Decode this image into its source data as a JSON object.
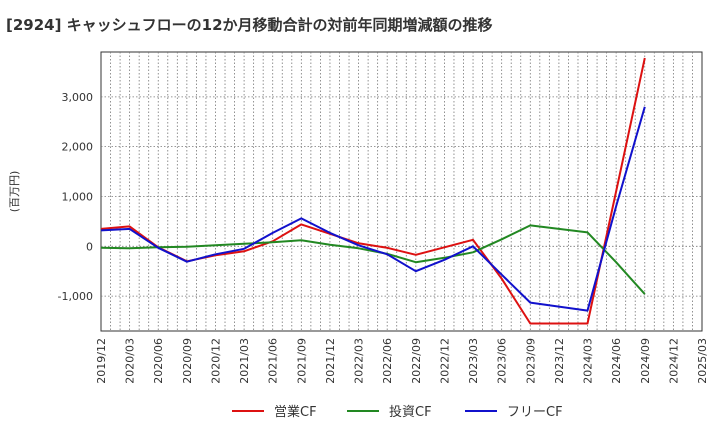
{
  "title": "[2924]  キャッシュフローの12か月移動合計の対前年同期増減額の推移",
  "chart_data": {
    "type": "line",
    "ylabel": "(百万円)",
    "ylim": [
      -1700,
      3900
    ],
    "yticks": [
      -1000,
      0,
      1000,
      2000,
      3000
    ],
    "ytick_labels": [
      "-1,000",
      "0",
      "1,000",
      "2,000",
      "3,000"
    ],
    "x_labels": [
      "2019/12",
      "2020/03",
      "2020/06",
      "2020/09",
      "2020/12",
      "2021/03",
      "2021/06",
      "2021/09",
      "2021/12",
      "2022/03",
      "2022/06",
      "2022/09",
      "2022/12",
      "2023/03",
      "2023/06",
      "2023/09",
      "2023/12",
      "2024/03",
      "2024/06",
      "2024/09",
      "2024/12",
      "2025/03"
    ],
    "grid": true,
    "legend_position": "bottom",
    "series": [
      {
        "name": "営業CF",
        "color": "#dd1111",
        "values": [
          350,
          400,
          -20,
          -300,
          -180,
          -100,
          100,
          440,
          250,
          60,
          -30,
          -170,
          -20,
          130,
          -650,
          -1550,
          -1550,
          -1550,
          1100,
          3780,
          null,
          null
        ]
      },
      {
        "name": "投資CF",
        "color": "#228822",
        "values": [
          -30,
          -40,
          -20,
          -10,
          20,
          50,
          80,
          120,
          30,
          -40,
          -150,
          -320,
          -230,
          -120,
          140,
          420,
          350,
          280,
          -320,
          -960,
          null,
          null
        ]
      },
      {
        "name": "フリーCF",
        "color": "#1111cc",
        "values": [
          320,
          350,
          -30,
          -310,
          -160,
          -50,
          270,
          560,
          270,
          20,
          -160,
          -500,
          -270,
          0,
          -570,
          -1130,
          -1210,
          -1290,
          800,
          2800,
          null,
          null
        ]
      }
    ]
  }
}
